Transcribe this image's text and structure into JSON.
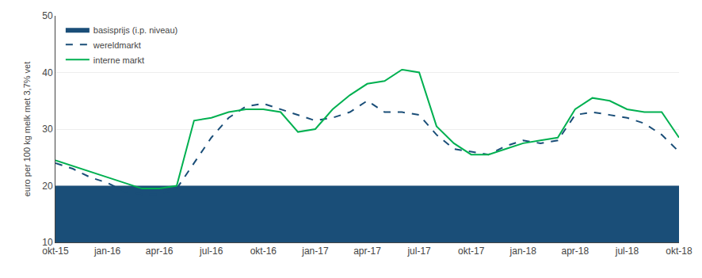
{
  "chart_data": {
    "type": "line",
    "ylabel": "euro per 100 kg melk met 3,7% vet",
    "categories": [
      "okt-15",
      null,
      null,
      "jan-16",
      null,
      null,
      "apr-16",
      null,
      null,
      "jul-16",
      null,
      null,
      "okt-16",
      null,
      null,
      "jan-17",
      null,
      null,
      "apr-17",
      null,
      null,
      "jul-17",
      null,
      null,
      "okt-17",
      null,
      null,
      "jan-18",
      null,
      null,
      "apr-18",
      null,
      null,
      "jul-18",
      null,
      null,
      "okt-18"
    ],
    "series": [
      {
        "name": "basisprijs (i.p. niveau)",
        "type": "area",
        "color": "#1a4e78",
        "values": [
          20,
          20,
          20,
          20,
          20,
          20,
          20,
          20,
          20,
          20,
          20,
          20,
          20,
          20,
          20,
          20,
          20,
          20,
          20,
          20,
          20,
          20,
          20,
          20,
          20,
          20,
          20,
          20,
          20,
          20,
          20,
          20,
          20,
          20,
          20,
          20,
          20
        ]
      },
      {
        "name": "wereldmarkt",
        "type": "line",
        "color": "#1a4e78",
        "line_style": "dashed",
        "values": [
          24.0,
          23.0,
          21.5,
          20.5,
          19.0,
          18.5,
          18.5,
          19.5,
          24.0,
          28.5,
          32.0,
          34.0,
          34.5,
          33.5,
          32.5,
          31.5,
          32.0,
          33.0,
          35.0,
          33.0,
          33.0,
          32.5,
          29.0,
          26.5,
          26.0,
          25.5,
          27.0,
          28.0,
          27.5,
          28.0,
          32.5,
          33.0,
          32.5,
          32.0,
          31.0,
          29.0,
          26.0
        ]
      },
      {
        "name": "interne markt",
        "type": "line",
        "color": "#00b050",
        "line_style": "solid",
        "values": [
          24.5,
          23.5,
          22.5,
          21.5,
          20.5,
          19.5,
          19.5,
          20.0,
          31.5,
          32.0,
          33.0,
          33.5,
          33.5,
          33.0,
          29.5,
          30.0,
          33.5,
          36.0,
          38.0,
          38.5,
          40.5,
          40.0,
          30.5,
          27.5,
          25.5,
          25.5,
          26.5,
          27.5,
          28.0,
          28.5,
          33.5,
          35.5,
          35.0,
          33.5,
          33.0,
          33.0,
          28.5
        ]
      }
    ],
    "ylim": [
      10,
      50
    ],
    "yticks": [
      10,
      20,
      30,
      40,
      50
    ],
    "grid": true,
    "legend": "upper left"
  }
}
